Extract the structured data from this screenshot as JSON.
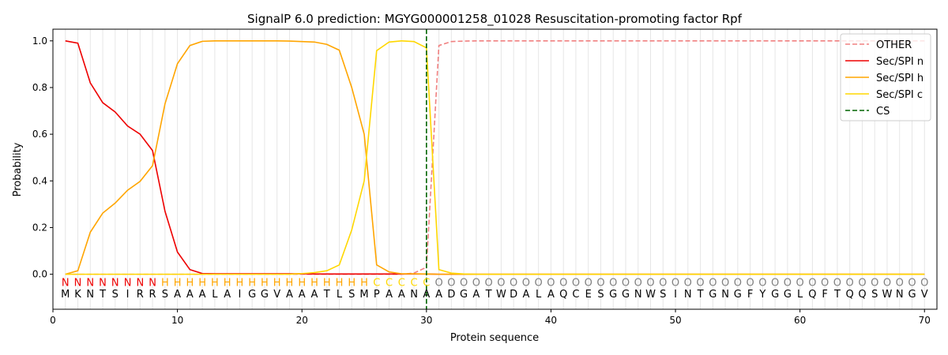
{
  "chart_data": {
    "type": "line",
    "title": "SignalP 6.0 prediction: MGYG000001258_01028 Resuscitation-promoting factor Rpf",
    "xlabel": "Protein sequence",
    "ylabel": "Probability",
    "xlim": [
      0,
      71
    ],
    "ylim": [
      -0.15,
      1.05
    ],
    "x_ticks": [
      0,
      10,
      20,
      30,
      40,
      50,
      60,
      70
    ],
    "y_ticks": [
      0.0,
      0.2,
      0.4,
      0.6,
      0.8,
      1.0
    ],
    "x_tick_labels": [
      "0",
      "10",
      "20",
      "30",
      "40",
      "50",
      "60",
      "70"
    ],
    "y_tick_labels": [
      "0.0",
      "0.2",
      "0.4",
      "0.6",
      "0.8",
      "1.0"
    ],
    "grid": "vertical lines at each residue",
    "legend_position": "top-right",
    "sequence": [
      "M",
      "K",
      "N",
      "T",
      "S",
      "I",
      "R",
      "R",
      "S",
      "A",
      "A",
      "A",
      "L",
      "A",
      "I",
      "G",
      "G",
      "V",
      "A",
      "A",
      "A",
      "T",
      "L",
      "S",
      "M",
      "P",
      "A",
      "A",
      "N",
      "A",
      "A",
      "D",
      "G",
      "A",
      "T",
      "W",
      "D",
      "A",
      "L",
      "A",
      "Q",
      "C",
      "E",
      "S",
      "G",
      "G",
      "N",
      "W",
      "S",
      "I",
      "N",
      "T",
      "G",
      "N",
      "G",
      "F",
      "Y",
      "G",
      "G",
      "L",
      "Q",
      "F",
      "T",
      "Q",
      "Q",
      "S",
      "W",
      "N",
      "G",
      "V"
    ],
    "predicted_labels": [
      "N",
      "N",
      "N",
      "N",
      "N",
      "N",
      "N",
      "N",
      "H",
      "H",
      "H",
      "H",
      "H",
      "H",
      "H",
      "H",
      "H",
      "H",
      "H",
      "H",
      "H",
      "H",
      "H",
      "H",
      "H",
      "C",
      "C",
      "C",
      "C",
      "C",
      "O",
      "O",
      "O",
      "O",
      "O",
      "O",
      "O",
      "O",
      "O",
      "O",
      "O",
      "O",
      "O",
      "O",
      "O",
      "O",
      "O",
      "O",
      "O",
      "O",
      "O",
      "O",
      "O",
      "O",
      "O",
      "O",
      "O",
      "O",
      "O",
      "O",
      "O",
      "O",
      "O",
      "O",
      "O",
      "O",
      "O",
      "O",
      "O",
      "O"
    ],
    "label_colors": {
      "N": "#ee0000",
      "H": "#ffa500",
      "C": "#ffd700",
      "O": "#808080"
    },
    "series": [
      {
        "name": "OTHER",
        "color": "#f08080",
        "dash": "dashed",
        "values": [
          0,
          0,
          0,
          0,
          0,
          0,
          0,
          0,
          0,
          0,
          0,
          0,
          0,
          0,
          0,
          0,
          0,
          0,
          0,
          0,
          0,
          0,
          0,
          0,
          0,
          0,
          0,
          0,
          0.005,
          0.03,
          0.98,
          0.997,
          0.999,
          1,
          1,
          1,
          1,
          1,
          1,
          1,
          1,
          1,
          1,
          1,
          1,
          1,
          1,
          1,
          1,
          1,
          1,
          1,
          1,
          1,
          1,
          1,
          1,
          1,
          1,
          1,
          1,
          1,
          1,
          1,
          1,
          1,
          1,
          1,
          1,
          1
        ]
      },
      {
        "name": "Sec/SPI n",
        "color": "#ee0000",
        "dash": "solid",
        "values": [
          1.0,
          0.99,
          0.82,
          0.735,
          0.695,
          0.635,
          0.6,
          0.53,
          0.27,
          0.095,
          0.02,
          0.003,
          0.002,
          0.002,
          0.002,
          0.002,
          0.002,
          0.002,
          0.002,
          0.002,
          0.001,
          0.001,
          0.001,
          0.001,
          0.001,
          0.001,
          0.001,
          0.001,
          0.001,
          0.001,
          0,
          0,
          0,
          0,
          0,
          0,
          0,
          0,
          0,
          0,
          0,
          0,
          0,
          0,
          0,
          0,
          0,
          0,
          0,
          0,
          0,
          0,
          0,
          0,
          0,
          0,
          0,
          0,
          0,
          0,
          0,
          0,
          0,
          0,
          0,
          0,
          0,
          0,
          0,
          0
        ]
      },
      {
        "name": "Sec/SPI h",
        "color": "#ffa500",
        "dash": "solid",
        "values": [
          0.0,
          0.015,
          0.18,
          0.262,
          0.305,
          0.36,
          0.398,
          0.465,
          0.73,
          0.902,
          0.98,
          0.998,
          1.0,
          1.0,
          1.0,
          1.0,
          1.0,
          1.0,
          0.999,
          0.997,
          0.995,
          0.985,
          0.96,
          0.8,
          0.6,
          0.04,
          0.01,
          0.002,
          0.002,
          0.001,
          0.0,
          0.0,
          0,
          0,
          0,
          0,
          0,
          0,
          0,
          0,
          0,
          0,
          0,
          0,
          0,
          0,
          0,
          0,
          0,
          0,
          0,
          0,
          0,
          0,
          0,
          0,
          0,
          0,
          0,
          0,
          0,
          0,
          0,
          0,
          0,
          0,
          0,
          0,
          0,
          0
        ]
      },
      {
        "name": "Sec/SPI c",
        "color": "#ffd700",
        "dash": "solid",
        "values": [
          0,
          0,
          0,
          0,
          0,
          0,
          0,
          0,
          0,
          0,
          0,
          0,
          0,
          0,
          0,
          0,
          0,
          0,
          0,
          0.003,
          0.007,
          0.015,
          0.04,
          0.19,
          0.4,
          0.958,
          0.995,
          1.0,
          0.997,
          0.97,
          0.02,
          0.005,
          0.001,
          0,
          0,
          0,
          0,
          0,
          0,
          0,
          0,
          0,
          0,
          0,
          0,
          0,
          0,
          0,
          0,
          0,
          0,
          0,
          0,
          0,
          0,
          0,
          0,
          0,
          0,
          0,
          0,
          0,
          0,
          0,
          0,
          0,
          0,
          0,
          0,
          0
        ]
      }
    ],
    "cleavage_site": {
      "name": "CS",
      "x": 30,
      "color": "#006400",
      "dash": "dashed"
    }
  }
}
